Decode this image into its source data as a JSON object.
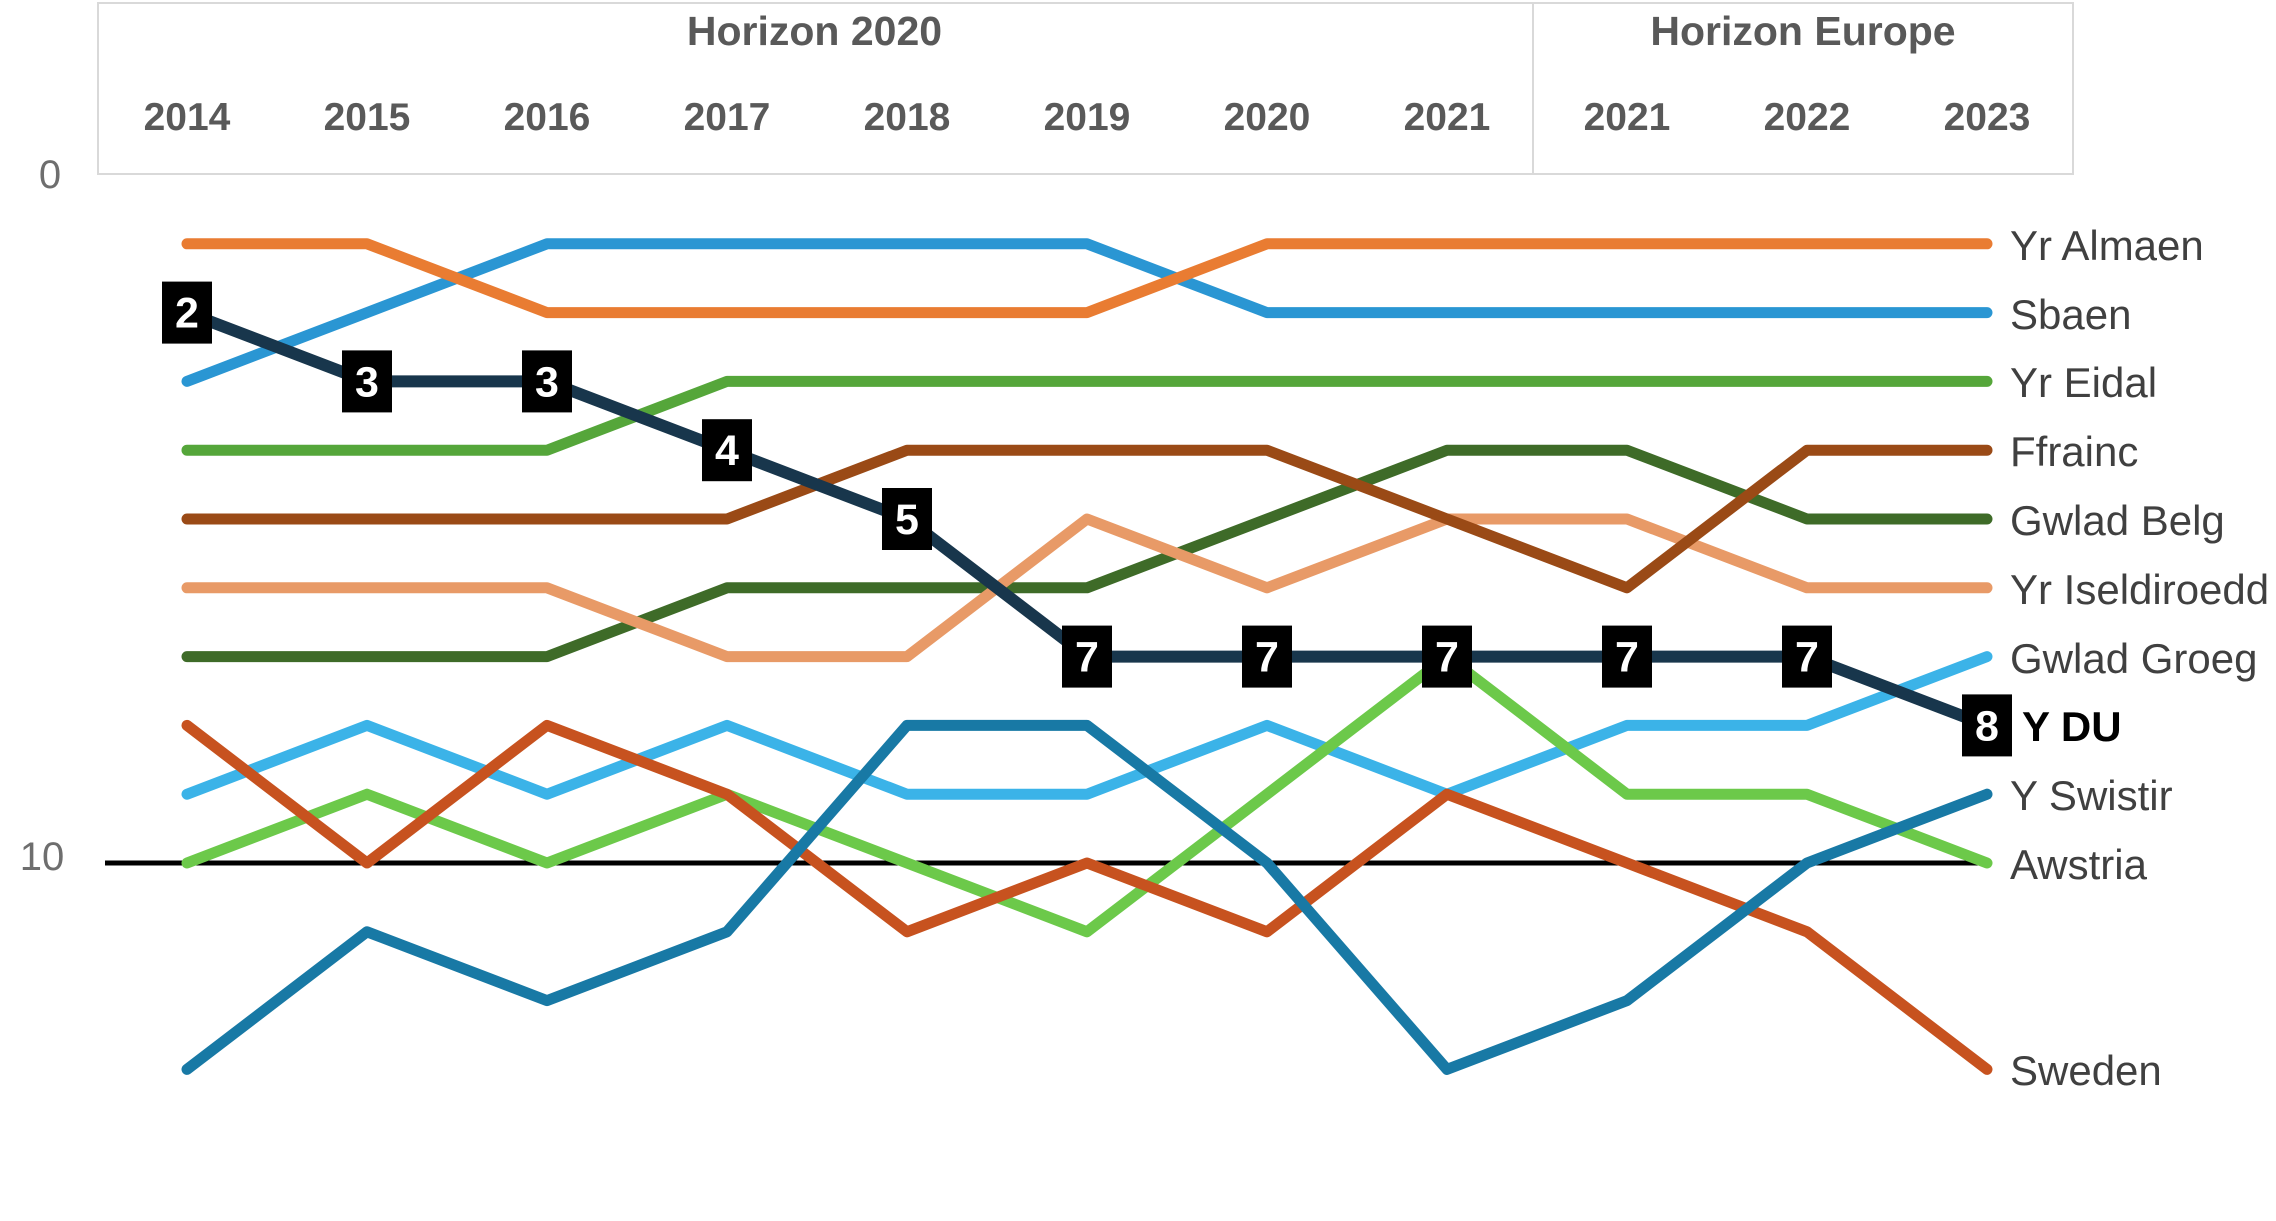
{
  "header": {
    "programs": [
      {
        "label": "Horizon 2020",
        "col_start": 0,
        "col_end": 7
      },
      {
        "label": "Horizon Europe",
        "col_start": 8,
        "col_end": 10
      }
    ]
  },
  "axis": {
    "top_tick": "0",
    "bottom_tick": "10",
    "bottom_tick_rank": 10
  },
  "chart_data": {
    "type": "line",
    "subtype": "bump-rank-chart",
    "x_categories": [
      "2014",
      "2015",
      "2016",
      "2017",
      "2018",
      "2019",
      "2020",
      "2021",
      "2021",
      "2022",
      "2023"
    ],
    "x_program": [
      "Horizon 2020",
      "Horizon 2020",
      "Horizon 2020",
      "Horizon 2020",
      "Horizon 2020",
      "Horizon 2020",
      "Horizon 2020",
      "Horizon 2020",
      "Horizon Europe",
      "Horizon Europe",
      "Horizon Europe"
    ],
    "y_axis": "rank (1 = top, lower is better)",
    "ylim": [
      0,
      14
    ],
    "grid": false,
    "legend_position": "right",
    "baseline_rank_line": {
      "rank": 10,
      "color": "#000000"
    },
    "series": [
      {
        "name": "Yr Almaen",
        "color": "#e97c32",
        "values": [
          1,
          1,
          2,
          2,
          2,
          2,
          1,
          1,
          1,
          1,
          1
        ]
      },
      {
        "name": "Sbaen",
        "color": "#2a96d3",
        "values": [
          3,
          2,
          1,
          1,
          1,
          1,
          2,
          2,
          2,
          2,
          2
        ]
      },
      {
        "name": "Yr Eidal",
        "color": "#55a63a",
        "values": [
          4,
          4,
          4,
          3,
          3,
          3,
          3,
          3,
          3,
          3,
          3
        ]
      },
      {
        "name": "Ffrainc",
        "color": "#9a4a16",
        "values": [
          5,
          5,
          5,
          5,
          4,
          4,
          4,
          5,
          6,
          4,
          4
        ]
      },
      {
        "name": "Gwlad Belg",
        "color": "#3e6b28",
        "values": [
          7,
          7,
          7,
          6,
          6,
          6,
          5,
          4,
          4,
          5,
          5
        ]
      },
      {
        "name": "Yr Iseldiroedd",
        "color": "#e89a67",
        "values": [
          6,
          6,
          6,
          7,
          7,
          5,
          6,
          5,
          5,
          6,
          6
        ]
      },
      {
        "name": "Gwlad Groeg",
        "color": "#3bb3e8",
        "values": [
          9,
          8,
          9,
          8,
          9,
          9,
          8,
          9,
          8,
          8,
          7
        ]
      },
      {
        "name": "Y DU",
        "color": "#18364c",
        "values": [
          2,
          3,
          3,
          4,
          5,
          7,
          7,
          7,
          7,
          7,
          8
        ],
        "emphasis": true,
        "point_labels": [
          "2",
          "3",
          "3",
          "4",
          "5",
          "7",
          "7",
          "7",
          "7",
          "7",
          "8"
        ],
        "point_label_style": {
          "background": "#000000",
          "text_color": "#ffffff"
        }
      },
      {
        "name": "Y Swistir",
        "color": "#1879a5",
        "values": [
          13,
          11,
          12,
          11,
          8,
          8,
          10,
          13,
          12,
          10,
          9
        ]
      },
      {
        "name": "Awstria",
        "color": "#6cc94a",
        "values": [
          10,
          9,
          10,
          9,
          10,
          11,
          9,
          7,
          9,
          9,
          10
        ]
      },
      {
        "name": "Sweden",
        "color": "#c7521f",
        "values": [
          8,
          10,
          8,
          9,
          11,
          10,
          11,
          9,
          10,
          11,
          13
        ]
      }
    ]
  }
}
